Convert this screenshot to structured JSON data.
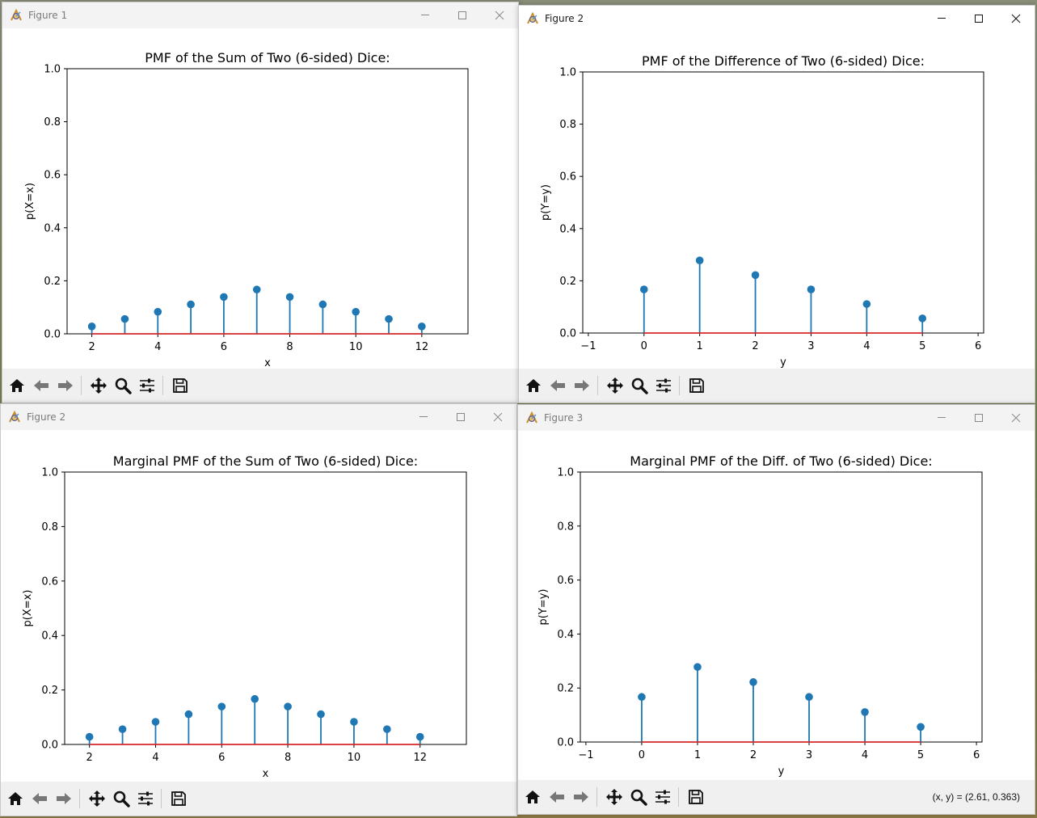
{
  "windows": [
    {
      "id": "w1",
      "title": "Figure 1",
      "active": false,
      "coords_text": "",
      "chart_data": {
        "type": "stem",
        "title": "PMF of the Sum of Two (6-sided) Dice:",
        "xlabel": "x",
        "ylabel": "p(X=x)",
        "xlim": [
          1.25,
          13.4
        ],
        "ylim": [
          0,
          1.0
        ],
        "xticks": [
          2,
          4,
          6,
          8,
          10,
          12
        ],
        "yticks": [
          0.0,
          0.2,
          0.4,
          0.6,
          0.8,
          1.0
        ],
        "x": [
          2,
          3,
          4,
          5,
          6,
          7,
          8,
          9,
          10,
          11,
          12
        ],
        "y": [
          0.028,
          0.056,
          0.083,
          0.111,
          0.139,
          0.167,
          0.139,
          0.111,
          0.083,
          0.056,
          0.028
        ],
        "color": "#1f77b4",
        "baseline_color": "#d62728"
      }
    },
    {
      "id": "w2",
      "title": "Figure 2",
      "active": true,
      "coords_text": "",
      "chart_data": {
        "type": "stem",
        "title": "PMF of the Difference of Two (6-sided) Dice:",
        "xlabel": "y",
        "ylabel": "p(Y=y)",
        "xlim": [
          -1.1,
          6.1
        ],
        "ylim": [
          0,
          1.0
        ],
        "xticks": [
          -1,
          0,
          1,
          2,
          3,
          4,
          5,
          6
        ],
        "xtick_labels": [
          "−1",
          "0",
          "1",
          "2",
          "3",
          "4",
          "5",
          "6"
        ],
        "yticks": [
          0.0,
          0.2,
          0.4,
          0.6,
          0.8,
          1.0
        ],
        "x": [
          0,
          1,
          2,
          3,
          4,
          5
        ],
        "y": [
          0.167,
          0.278,
          0.222,
          0.167,
          0.111,
          0.056
        ],
        "color": "#1f77b4",
        "baseline_color": "#d62728"
      }
    },
    {
      "id": "w3",
      "title": "Figure 2",
      "active": false,
      "coords_text": "",
      "chart_data": {
        "type": "stem",
        "title": "Marginal PMF of the Sum of Two (6-sided) Dice:",
        "xlabel": "x",
        "ylabel": "p(X=x)",
        "xlim": [
          1.25,
          13.4
        ],
        "ylim": [
          0,
          1.0
        ],
        "xticks": [
          2,
          4,
          6,
          8,
          10,
          12
        ],
        "yticks": [
          0.0,
          0.2,
          0.4,
          0.6,
          0.8,
          1.0
        ],
        "x": [
          2,
          3,
          4,
          5,
          6,
          7,
          8,
          9,
          10,
          11,
          12
        ],
        "y": [
          0.028,
          0.056,
          0.083,
          0.111,
          0.139,
          0.167,
          0.139,
          0.111,
          0.083,
          0.056,
          0.028
        ],
        "color": "#1f77b4",
        "baseline_color": "#d62728"
      }
    },
    {
      "id": "w4",
      "title": "Figure 3",
      "active": false,
      "coords_text": "(x, y) = (2.61, 0.363)",
      "chart_data": {
        "type": "stem",
        "title": "Marginal PMF of the Diff. of Two (6-sided) Dice:",
        "xlabel": "y",
        "ylabel": "p(Y=y)",
        "xlim": [
          -1.1,
          6.1
        ],
        "ylim": [
          0,
          1.0
        ],
        "xticks": [
          -1,
          0,
          1,
          2,
          3,
          4,
          5,
          6
        ],
        "xtick_labels": [
          "−1",
          "0",
          "1",
          "2",
          "3",
          "4",
          "5",
          "6"
        ],
        "yticks": [
          0.0,
          0.2,
          0.4,
          0.6,
          0.8,
          1.0
        ],
        "x": [
          0,
          1,
          2,
          3,
          4,
          5
        ],
        "y": [
          0.167,
          0.278,
          0.222,
          0.167,
          0.111,
          0.056
        ],
        "color": "#1f77b4",
        "baseline_color": "#d62728"
      }
    }
  ],
  "toolbar_icons": [
    "home-icon",
    "back-arrow-icon",
    "forward-arrow-icon",
    "pan-icon",
    "zoom-icon",
    "configure-subplots-icon",
    "save-icon"
  ],
  "window_controls": [
    "minimize-icon",
    "maximize-icon",
    "close-icon"
  ]
}
